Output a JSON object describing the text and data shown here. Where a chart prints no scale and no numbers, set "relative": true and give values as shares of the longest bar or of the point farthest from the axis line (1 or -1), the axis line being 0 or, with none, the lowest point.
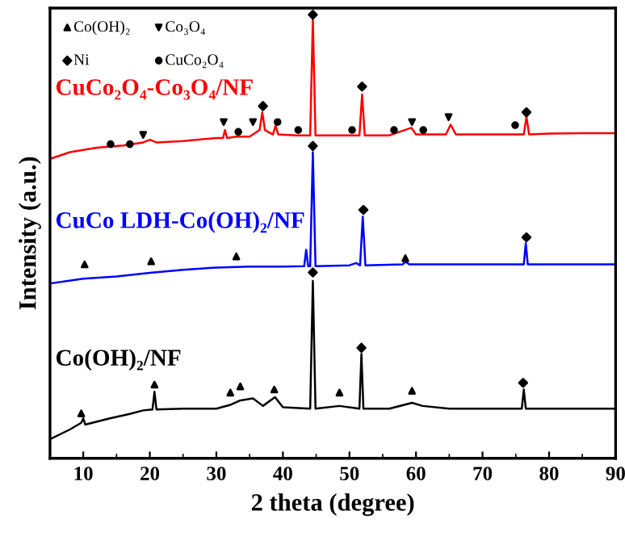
{
  "chart_data": {
    "type": "line",
    "relative": true,
    "xlabel": "2 theta (degree)",
    "ylabel": "Intensity (a.u.)",
    "xlim": [
      5,
      90
    ],
    "xticks": [
      10,
      20,
      30,
      40,
      50,
      60,
      70,
      80,
      90
    ],
    "grid": false,
    "legend": "top left",
    "series": [
      {
        "name": "CuCo₂O₄-Co₃O₄/NF",
        "color": "#ff0000",
        "x": [
          5,
          8,
          12,
          16,
          19,
          20,
          21,
          25,
          30,
          31,
          31.3,
          31.6,
          33,
          35,
          36.5,
          36.9,
          37.3,
          38.5,
          38.9,
          39.3,
          42,
          44.1,
          44.5,
          44.9,
          48,
          51.5,
          51.9,
          52.3,
          56,
          59.3,
          60,
          64.5,
          65.2,
          66,
          70,
          74,
          76.2,
          76.6,
          77,
          80,
          85,
          90
        ],
        "values": [
          0.675,
          0.69,
          0.7,
          0.705,
          0.712,
          0.718,
          0.712,
          0.715,
          0.722,
          0.722,
          0.74,
          0.722,
          0.725,
          0.725,
          0.74,
          0.78,
          0.74,
          0.73,
          0.75,
          0.73,
          0.728,
          0.728,
          0.99,
          0.728,
          0.728,
          0.728,
          0.82,
          0.728,
          0.728,
          0.745,
          0.73,
          0.73,
          0.752,
          0.73,
          0.73,
          0.73,
          0.73,
          0.77,
          0.73,
          0.732,
          0.733,
          0.733
        ]
      },
      {
        "name": "CuCo LDH-Co(OH)₂/NF",
        "color": "#0000ff",
        "x": [
          5,
          10,
          15,
          20,
          25,
          30,
          35,
          40,
          43.2,
          43.5,
          43.8,
          44.1,
          44.5,
          44.9,
          50,
          51,
          51.6,
          52,
          52.4,
          58,
          58.4,
          59,
          65,
          70,
          76.2,
          76.5,
          76.8,
          85,
          90
        ],
        "values": [
          0.394,
          0.405,
          0.41,
          0.418,
          0.425,
          0.43,
          0.432,
          0.432,
          0.433,
          0.47,
          0.433,
          0.433,
          0.69,
          0.433,
          0.435,
          0.44,
          0.435,
          0.545,
          0.435,
          0.437,
          0.443,
          0.437,
          0.437,
          0.437,
          0.437,
          0.485,
          0.437,
          0.437,
          0.437
        ]
      },
      {
        "name": "Co(OH)₂/NF",
        "color": "#000000",
        "x": [
          5,
          8,
          9.7,
          10,
          10.3,
          14,
          17,
          19,
          20.4,
          20.7,
          21,
          25,
          30,
          32,
          33.5,
          35.5,
          37,
          38.8,
          40,
          44.1,
          44.5,
          44.9,
          48.5,
          51.5,
          51.8,
          52.1,
          56,
          59.4,
          61,
          65,
          70,
          75.9,
          76.2,
          76.5,
          82,
          90
        ],
        "values": [
          0.043,
          0.065,
          0.08,
          0.09,
          0.076,
          0.09,
          0.1,
          0.108,
          0.11,
          0.15,
          0.11,
          0.112,
          0.112,
          0.12,
          0.13,
          0.135,
          0.118,
          0.138,
          0.115,
          0.112,
          0.4,
          0.112,
          0.118,
          0.112,
          0.235,
          0.112,
          0.112,
          0.125,
          0.118,
          0.112,
          0.112,
          0.112,
          0.155,
          0.112,
          0.112,
          0.112
        ]
      },
      {
        "name": "Co(OH)₂",
        "type": "scatter",
        "marker": "triangle",
        "color": "#000000",
        "x": [
          10.2,
          20.2,
          33.0,
          58.4,
          9.7,
          20.7,
          32.1,
          33.6,
          38.7,
          48.5,
          59.4
        ],
        "values": [
          0.437,
          0.444,
          0.455,
          0.451,
          0.101,
          0.166,
          0.148,
          0.162,
          0.155,
          0.148,
          0.152
        ]
      },
      {
        "name": "Co₃O₄",
        "type": "scatter",
        "marker": "triangle_down",
        "color": "#000000",
        "x": [
          19.0,
          31.1,
          35.5,
          59.4,
          64.9
        ],
        "values": [
          0.729,
          0.758,
          0.758,
          0.758,
          0.769
        ]
      },
      {
        "name": "Ni",
        "type": "scatter",
        "marker": "diamond",
        "color": "#000000",
        "x": [
          37.0,
          44.5,
          51.9,
          76.6,
          44.5,
          52.1,
          76.6,
          44.5,
          51.8,
          76.1
        ],
        "values": [
          0.794,
          1.0,
          0.838,
          0.78,
          0.704,
          0.56,
          0.498,
          0.419,
          0.249,
          0.17
        ]
      },
      {
        "name": "CuCo₂O₄",
        "type": "scatter",
        "marker": "circle",
        "color": "#000000",
        "x": [
          14.1,
          17.0,
          33.3,
          39.2,
          42.3,
          50.4,
          56.7,
          61.1,
          74.9
        ],
        "values": [
          0.708,
          0.708,
          0.736,
          0.758,
          0.74,
          0.74,
          0.74,
          0.74,
          0.751
        ]
      }
    ]
  }
}
